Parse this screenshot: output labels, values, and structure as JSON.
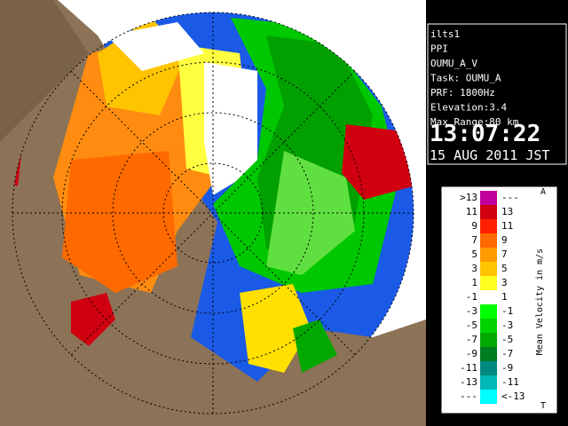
{
  "info": {
    "lines": [
      "ilts1",
      "PPI",
      "OUMU_A_V",
      "Task: OUMU_A",
      "PRF: 1800Hz",
      "Elevation:3.4",
      "Max Range:80 km"
    ],
    "time": "13:07:22",
    "date": "15 AUG 2011 JST"
  },
  "legend": {
    "title": "Mean Velocity in m/s",
    "top_mark": "A",
    "bottom_mark": "T",
    "rows": [
      {
        "left": ">13",
        "right": "---",
        "color": "#c0009c"
      },
      {
        "left": "11",
        "right": "13",
        "color": "#d00010"
      },
      {
        "left": "9",
        "right": "11",
        "color": "#ff2000"
      },
      {
        "left": "7",
        "right": "9",
        "color": "#ff6a00"
      },
      {
        "left": "5",
        "right": "7",
        "color": "#ff9a00"
      },
      {
        "left": "3",
        "right": "5",
        "color": "#ffc400"
      },
      {
        "left": "1",
        "right": "3",
        "color": "#ffff20"
      },
      {
        "left": "-1",
        "right": "1",
        "color": "#ffffff"
      },
      {
        "left": "-3",
        "right": "-1",
        "color": "#00ff00"
      },
      {
        "left": "-5",
        "right": "-3",
        "color": "#00d200"
      },
      {
        "left": "-7",
        "right": "-5",
        "color": "#00a800"
      },
      {
        "left": "-9",
        "right": "-7",
        "color": "#007c20"
      },
      {
        "left": "-11",
        "right": "-9",
        "color": "#008a80"
      },
      {
        "left": "-13",
        "right": "-11",
        "color": "#00b8b8"
      },
      {
        "left": "---",
        "right": "<-13",
        "color": "#00ffff"
      }
    ]
  }
}
